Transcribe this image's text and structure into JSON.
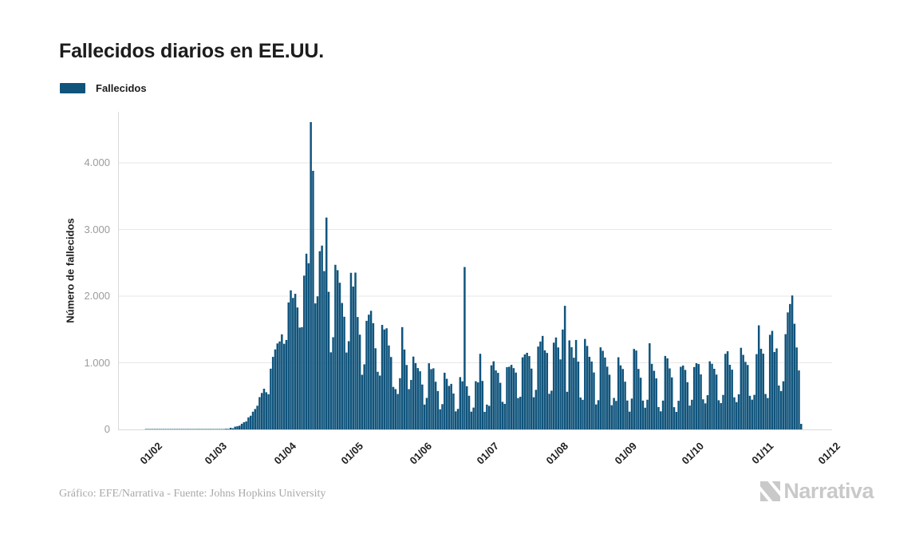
{
  "header": {
    "title": "Fallecidos diarios en EE.UU."
  },
  "legend": {
    "items": [
      {
        "label": "Fallecidos",
        "color": "#10547c"
      }
    ]
  },
  "footer": {
    "credit": "Gráfico: EFE/Narrativa - Fuente: Johns Hopkins University"
  },
  "brand": {
    "name": "Narrativa",
    "logo_icon": "narrativa-n-icon",
    "color": "#c9c9c9"
  },
  "colors": {
    "bar": "#10547c",
    "grid": "#e7e7e7",
    "axis_line": "#d9d9d9",
    "tick_text": "#9b9b9b",
    "text": "#1c1c1c"
  },
  "chart_data": {
    "type": "bar",
    "title": "Fallecidos diarios en EE.UU.",
    "series_name": "Fallecidos",
    "xlabel": "",
    "ylabel": "Número de fallecidos",
    "ylim": [
      0,
      4766
    ],
    "yticks": [
      0,
      1000,
      2000,
      3000,
      4000
    ],
    "ytick_labels": [
      "0",
      "1.000",
      "2.000",
      "3.000",
      "4.000"
    ],
    "grid": true,
    "legend_position": "top-left",
    "x_domain_days": 320,
    "month_ticks": [
      {
        "label": "01/02",
        "day_index": 10
      },
      {
        "label": "01/03",
        "day_index": 39
      },
      {
        "label": "01/04",
        "day_index": 70
      },
      {
        "label": "01/05",
        "day_index": 100
      },
      {
        "label": "01/06",
        "day_index": 131
      },
      {
        "label": "01/07",
        "day_index": 161
      },
      {
        "label": "01/08",
        "day_index": 192
      },
      {
        "label": "01/09",
        "day_index": 223
      },
      {
        "label": "01/10",
        "day_index": 253
      },
      {
        "label": "01/11",
        "day_index": 284
      },
      {
        "label": "01/12",
        "day_index": 314
      }
    ],
    "values": [
      0,
      0,
      0,
      0,
      0,
      0,
      0,
      0,
      0,
      0,
      0,
      0,
      1,
      1,
      1,
      1,
      1,
      1,
      1,
      1,
      1,
      1,
      1,
      1,
      1,
      1,
      1,
      1,
      1,
      1,
      1,
      1,
      1,
      1,
      1,
      1,
      1,
      1,
      2,
      1,
      5,
      6,
      2,
      5,
      3,
      4,
      4,
      7,
      11,
      9,
      25,
      18,
      41,
      48,
      56,
      85,
      108,
      121,
      181,
      206,
      266,
      307,
      356,
      485,
      547,
      611,
      558,
      528,
      912,
      1089,
      1201,
      1290,
      1320,
      1426,
      1285,
      1342,
      1906,
      2087,
      1973,
      2035,
      1830,
      1528,
      1535,
      2308,
      2637,
      2494,
      4611,
      3880,
      1891,
      1997,
      2674,
      2758,
      2376,
      3179,
      2065,
      1157,
      1384,
      2470,
      2390,
      2201,
      1897,
      1691,
      1154,
      1324,
      2350,
      2144,
      2353,
      1687,
      1422,
      820,
      977,
      1630,
      1722,
      1780,
      1595,
      1218,
      865,
      808,
      1568,
      1500,
      1518,
      1260,
      1087,
      638,
      605,
      532,
      769,
      1535,
      1199,
      967,
      605,
      743,
      1093,
      995,
      921,
      873,
      674,
      373,
      473,
      993,
      905,
      917,
      716,
      576,
      302,
      380,
      851,
      760,
      653,
      684,
      539,
      271,
      308,
      785,
      722,
      2437,
      648,
      505,
      267,
      328,
      724,
      706,
      1135,
      728,
      264,
      373,
      354,
      962,
      1022,
      886,
      849,
      700,
      414,
      384,
      935,
      941,
      969,
      920,
      853,
      471,
      490,
      1082,
      1125,
      1150,
      1101,
      913,
      483,
      594,
      1244,
      1319,
      1403,
      1187,
      1148,
      535,
      582,
      1302,
      1380,
      1230,
      1051,
      1499,
      1855,
      565,
      1336,
      1235,
      1076,
      1342,
      1018,
      479,
      445,
      1358,
      1253,
      1090,
      1019,
      855,
      375,
      439,
      1232,
      1180,
      1079,
      942,
      821,
      363,
      473,
      428,
      1083,
      961,
      907,
      717,
      434,
      267,
      463,
      1208,
      1184,
      908,
      776,
      433,
      326,
      446,
      1293,
      984,
      880,
      766,
      336,
      272,
      433,
      1103,
      1067,
      916,
      781,
      334,
      263,
      430,
      940,
      959,
      893,
      709,
      358,
      445,
      936,
      994,
      981,
      826,
      452,
      391,
      514,
      1022,
      985,
      910,
      823,
      438,
      395,
      518,
      1135,
      1173,
      970,
      897,
      482,
      410,
      527,
      1225,
      1119,
      1014,
      967,
      505,
      447,
      519,
      1130,
      1562,
      1210,
      1137,
      532,
      471,
      1420,
      1479,
      1162,
      1216,
      659,
      576,
      723,
      1430,
      1756,
      1882,
      2010,
      1586,
      1230,
      885,
      84
    ]
  }
}
